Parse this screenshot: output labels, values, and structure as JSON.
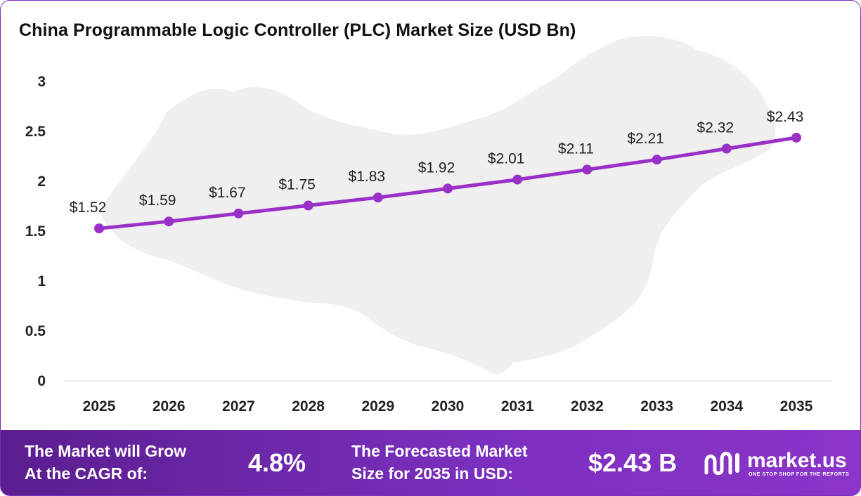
{
  "chart_data": {
    "type": "line",
    "title": "China Programmable Logic Controller (PLC) Market Size (USD Bn)",
    "categories": [
      "2025",
      "2026",
      "2027",
      "2028",
      "2029",
      "2030",
      "2031",
      "2032",
      "2033",
      "2034",
      "2035"
    ],
    "values": [
      1.52,
      1.59,
      1.67,
      1.75,
      1.83,
      1.92,
      2.01,
      2.11,
      2.21,
      2.32,
      2.43
    ],
    "data_labels": [
      "$1.52",
      "$1.59",
      "$1.67",
      "$1.75",
      "$1.83",
      "$1.92",
      "$2.01",
      "$2.11",
      "$2.21",
      "$2.32",
      "$2.43"
    ],
    "yticks": [
      "0",
      "0.5",
      "1",
      "1.5",
      "2",
      "2.5",
      "3"
    ],
    "ylim": [
      0,
      3
    ],
    "grid": false,
    "line_color": "#9b30c8"
  },
  "footer": {
    "cagr_label_line1": "The Market will Grow",
    "cagr_label_line2": "At the CAGR of:",
    "cagr_value": "4.8%",
    "forecast_label_line1": "The Forecasted Market",
    "forecast_label_line2": "Size for 2035 in USD:",
    "forecast_value": "$2.43 B"
  },
  "brand": {
    "name": "market.us",
    "tagline": "ONE STOP SHOP FOR THE REPORTS",
    "icon": "market-us-logo-icon"
  }
}
